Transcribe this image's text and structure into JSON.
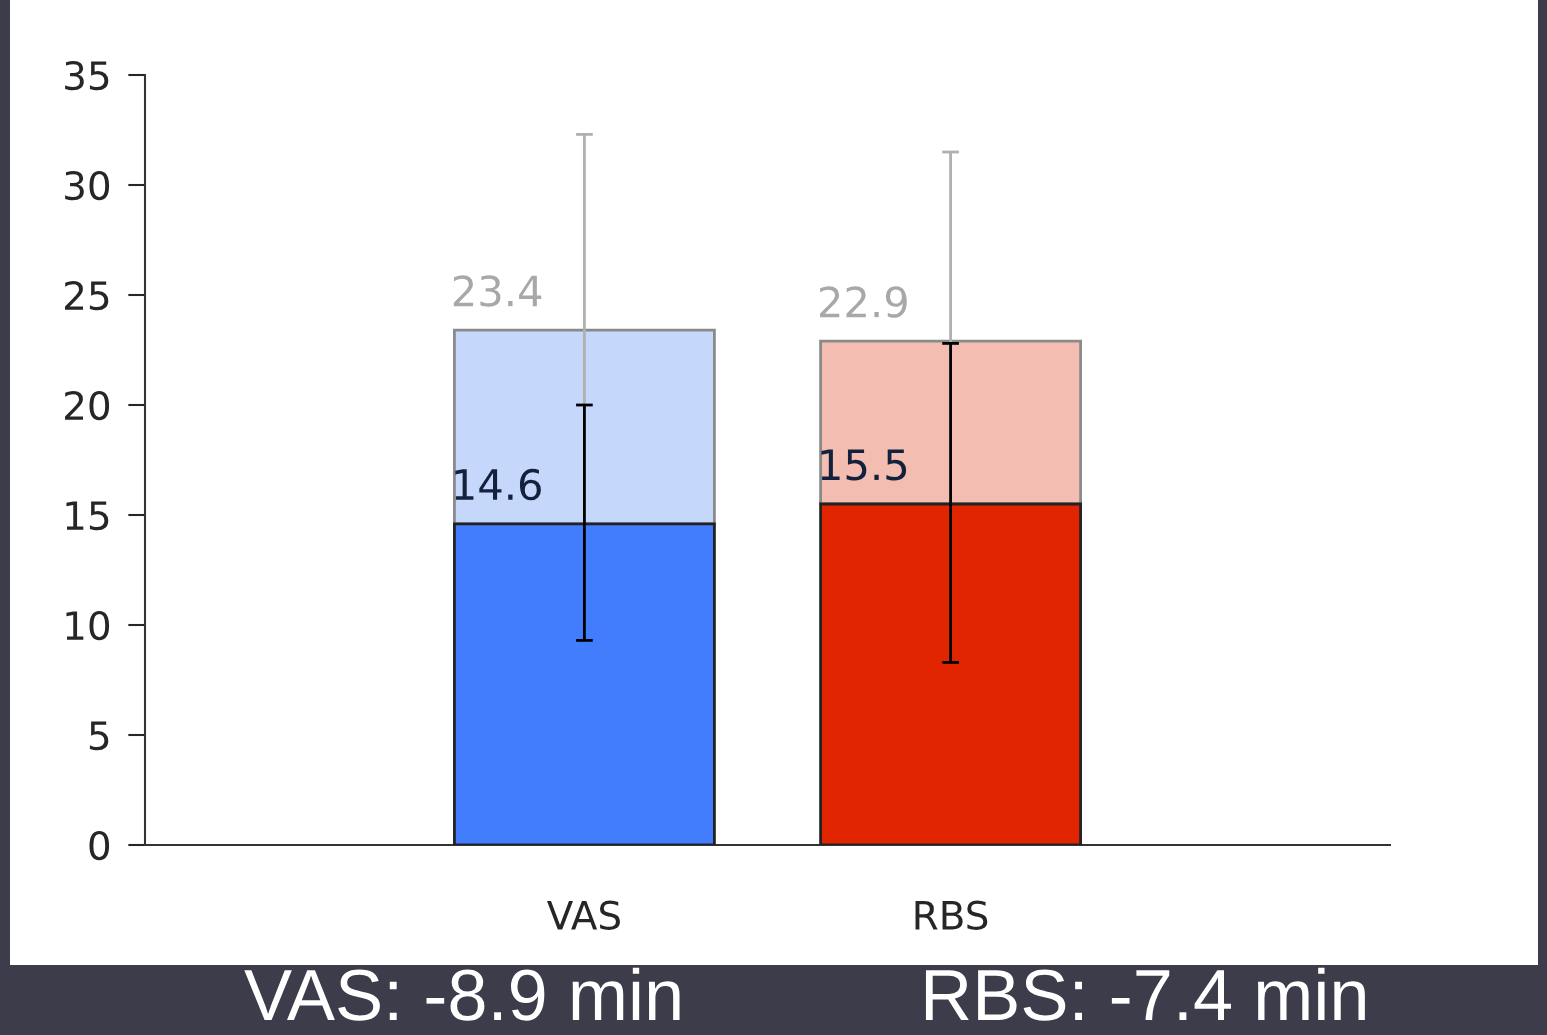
{
  "chart_data": {
    "type": "bar",
    "categories": [
      "VAS",
      "RBS"
    ],
    "stacked": true,
    "series": [
      {
        "colors": [
          "#417dfd",
          "#e02500"
        ],
        "values": [
          14.6,
          15.5
        ],
        "errors": [
          [
            9.3,
            20.0
          ],
          [
            8.3,
            22.8
          ]
        ]
      },
      {
        "colors": [
          "#c5d7fb",
          "#f4bdb2"
        ],
        "values": [
          8.8,
          7.4
        ],
        "errors": [
          [
            14.5,
            32.3
          ],
          [
            14.1,
            31.5
          ]
        ]
      }
    ],
    "totals": [
      "23.4",
      "22.9"
    ],
    "ylim": [
      0,
      35
    ],
    "yticks": [
      0,
      5,
      10,
      15,
      20,
      25,
      30,
      35
    ],
    "value_labels": [
      "14.6",
      "15.5"
    ],
    "annotations": [
      "VAS: -8.9 min",
      "RBS: -7.4 min"
    ]
  }
}
